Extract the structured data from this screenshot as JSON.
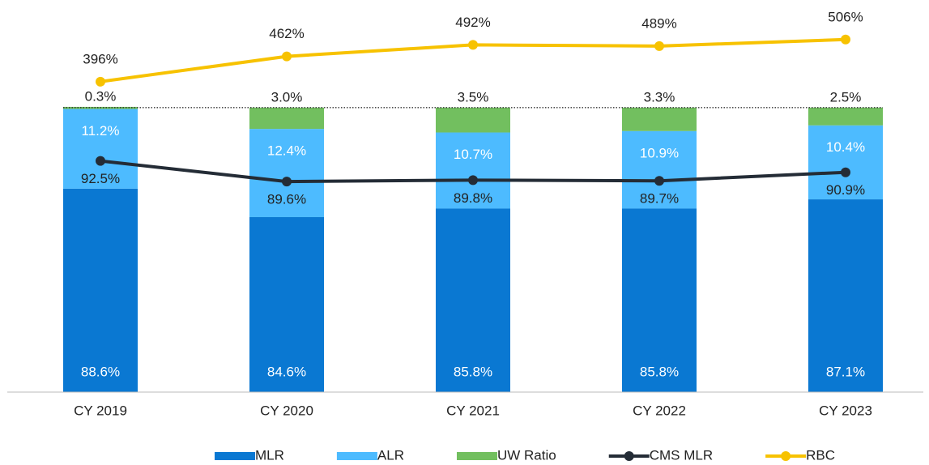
{
  "chart_data": {
    "type": "stacked-bar-line",
    "categories": [
      "CY 2019",
      "CY 2020",
      "CY 2021",
      "CY 2022",
      "CY 2023"
    ],
    "ylim": [
      60,
      110
    ],
    "y2lim": [
      -414,
      514
    ],
    "reference_line": 100,
    "series": [
      {
        "name": "MLR",
        "type": "bar",
        "color": "#0a78d2",
        "values": [
          88.6,
          84.6,
          85.8,
          85.8,
          87.1
        ],
        "value_labels": [
          "88.6%",
          "84.6%",
          "85.8%",
          "85.8%",
          "87.1%"
        ]
      },
      {
        "name": "ALR",
        "type": "bar",
        "color": "#4dbbff",
        "values": [
          11.2,
          12.4,
          10.7,
          10.9,
          10.4
        ],
        "value_labels": [
          "11.2%",
          "12.4%",
          "10.7%",
          "10.9%",
          "10.4%"
        ]
      },
      {
        "name": "UW Ratio",
        "type": "bar",
        "color": "#72bf5f",
        "values": [
          0.3,
          3.0,
          3.5,
          3.3,
          2.5
        ],
        "value_labels": [
          "0.3%",
          "3.0%",
          "3.5%",
          "3.3%",
          "2.5%"
        ]
      },
      {
        "name": "CMS MLR",
        "type": "line",
        "color": "#242c36",
        "values": [
          92.5,
          89.6,
          89.8,
          89.7,
          90.9
        ],
        "value_labels": [
          "92.5%",
          "89.6%",
          "89.8%",
          "89.7%",
          "90.9%"
        ]
      },
      {
        "name": "RBC",
        "type": "line",
        "axis": "y2",
        "color": "#f7c200",
        "values": [
          396,
          462,
          492,
          489,
          506
        ],
        "value_labels": [
          "396%",
          "462%",
          "492%",
          "489%",
          "506%"
        ]
      }
    ]
  }
}
